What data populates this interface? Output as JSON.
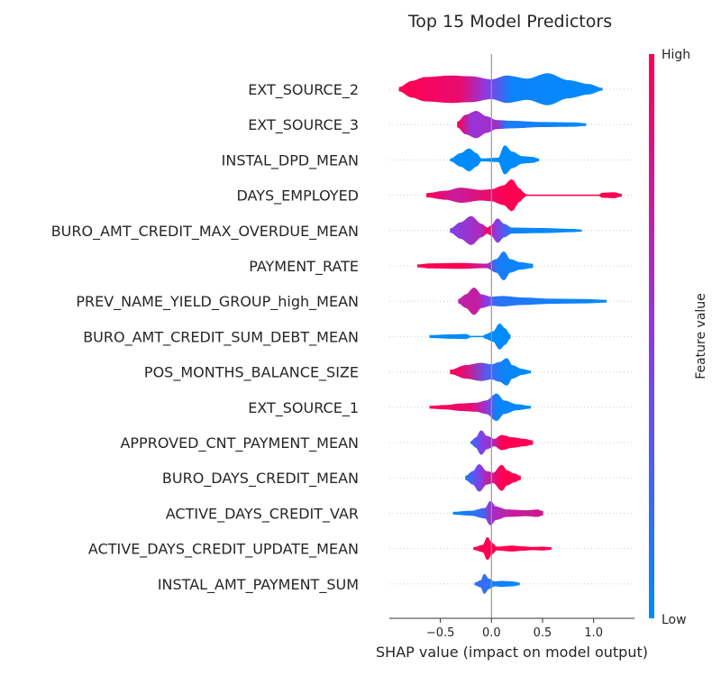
{
  "chart_data": {
    "type": "violin",
    "title": "Top 15 Model Predictors",
    "xlabel": "SHAP value (impact on model output)",
    "xlim": [
      -1.0,
      1.4
    ],
    "xticks": [
      -0.5,
      0.0,
      0.5,
      1.0
    ],
    "xtick_labels": [
      "−0.5",
      "0.0",
      "0.5",
      "1.0"
    ],
    "colorbar": {
      "label": "Feature value",
      "high_label": "High",
      "low_label": "Low",
      "low_color": "#008bfb",
      "mid_color": "#8c3ae6",
      "high_color": "#ff0052"
    },
    "zero_line": true,
    "grid": false,
    "features": [
      {
        "name": "EXT_SOURCE_2",
        "profile": [
          [
            -0.9,
            0.1
          ],
          [
            -0.78,
            0.5
          ],
          [
            -0.65,
            0.75
          ],
          [
            -0.4,
            0.85
          ],
          [
            -0.2,
            0.8
          ],
          [
            0.0,
            0.6
          ],
          [
            0.15,
            0.85
          ],
          [
            0.35,
            0.65
          ],
          [
            0.55,
            1.0
          ],
          [
            0.75,
            0.55
          ],
          [
            0.95,
            0.3
          ],
          [
            1.08,
            0.05
          ]
        ],
        "colors": [
          [
            -0.9,
            1.0
          ],
          [
            -0.3,
            0.9
          ],
          [
            -0.05,
            0.5
          ],
          [
            0.2,
            0.05
          ],
          [
            1.08,
            0.0
          ]
        ]
      },
      {
        "name": "EXT_SOURCE_3",
        "profile": [
          [
            -0.33,
            0.15
          ],
          [
            -0.25,
            0.6
          ],
          [
            -0.15,
            0.85
          ],
          [
            -0.05,
            0.5
          ],
          [
            0.05,
            0.25
          ],
          [
            0.2,
            0.2
          ],
          [
            0.5,
            0.12
          ],
          [
            0.8,
            0.1
          ],
          [
            0.92,
            0.05
          ]
        ],
        "colors": [
          [
            -0.33,
            1.0
          ],
          [
            -0.2,
            0.55
          ],
          [
            0.05,
            0.6
          ],
          [
            0.15,
            0.1
          ],
          [
            0.92,
            0.0
          ]
        ]
      },
      {
        "name": "INSTAL_DPD_MEAN",
        "profile": [
          [
            -0.4,
            0.05
          ],
          [
            -0.3,
            0.4
          ],
          [
            -0.22,
            0.7
          ],
          [
            -0.15,
            0.4
          ],
          [
            -0.1,
            0.05
          ],
          [
            0.07,
            0.1
          ],
          [
            0.13,
            0.9
          ],
          [
            0.2,
            0.5
          ],
          [
            0.3,
            0.2
          ],
          [
            0.4,
            0.15
          ],
          [
            0.46,
            0.05
          ]
        ],
        "colors": [
          [
            -0.4,
            0.0
          ],
          [
            0.46,
            0.0
          ]
        ]
      },
      {
        "name": "DAYS_EMPLOYED",
        "profile": [
          [
            -0.63,
            0.1
          ],
          [
            -0.45,
            0.25
          ],
          [
            -0.3,
            0.45
          ],
          [
            -0.1,
            0.3
          ],
          [
            0.0,
            0.35
          ],
          [
            0.12,
            0.6
          ],
          [
            0.2,
            1.0
          ],
          [
            0.27,
            0.4
          ],
          [
            0.32,
            0.1
          ],
          [
            0.33,
            0.0
          ],
          [
            1.06,
            0.0
          ],
          [
            1.08,
            0.12
          ],
          [
            1.2,
            0.15
          ],
          [
            1.27,
            0.05
          ]
        ],
        "colors": [
          [
            -0.63,
            1.0
          ],
          [
            -0.35,
            0.75
          ],
          [
            -0.05,
            0.9
          ],
          [
            0.15,
            1.0
          ],
          [
            1.27,
            1.0
          ]
        ]
      },
      {
        "name": "BURO_AMT_CREDIT_MAX_OVERDUE_MEAN",
        "profile": [
          [
            -0.4,
            0.1
          ],
          [
            -0.3,
            0.5
          ],
          [
            -0.2,
            0.9
          ],
          [
            -0.1,
            0.4
          ],
          [
            -0.04,
            0.15
          ],
          [
            0.0,
            0.3
          ],
          [
            0.06,
            0.75
          ],
          [
            0.12,
            0.4
          ],
          [
            0.2,
            0.15
          ],
          [
            0.5,
            0.12
          ],
          [
            0.8,
            0.06
          ],
          [
            0.88,
            0.02
          ]
        ],
        "colors": [
          [
            -0.4,
            0.45
          ],
          [
            -0.1,
            0.65
          ],
          [
            -0.03,
            1.0
          ],
          [
            0.03,
            0.55
          ],
          [
            0.12,
            0.3
          ],
          [
            0.2,
            0.05
          ],
          [
            0.88,
            0.0
          ]
        ]
      },
      {
        "name": "PAYMENT_RATE",
        "profile": [
          [
            -0.72,
            0.05
          ],
          [
            -0.6,
            0.12
          ],
          [
            -0.3,
            0.15
          ],
          [
            -0.05,
            0.1
          ],
          [
            0.05,
            0.4
          ],
          [
            0.12,
            0.9
          ],
          [
            0.18,
            0.4
          ],
          [
            0.28,
            0.2
          ],
          [
            0.4,
            0.1
          ]
        ],
        "colors": [
          [
            -0.72,
            1.0
          ],
          [
            -0.3,
            1.0
          ],
          [
            -0.05,
            0.7
          ],
          [
            0.05,
            0.1
          ],
          [
            0.4,
            0.0
          ]
        ]
      },
      {
        "name": "PREV_NAME_YIELD_GROUP_high_MEAN",
        "profile": [
          [
            -0.32,
            0.1
          ],
          [
            -0.25,
            0.4
          ],
          [
            -0.17,
            0.85
          ],
          [
            -0.1,
            0.4
          ],
          [
            0.0,
            0.25
          ],
          [
            0.1,
            0.3
          ],
          [
            0.3,
            0.2
          ],
          [
            0.6,
            0.12
          ],
          [
            0.9,
            0.1
          ],
          [
            1.12,
            0.05
          ]
        ],
        "colors": [
          [
            -0.32,
            0.7
          ],
          [
            -0.15,
            0.75
          ],
          [
            -0.05,
            0.5
          ],
          [
            0.05,
            0.15
          ],
          [
            1.12,
            0.0
          ]
        ]
      },
      {
        "name": "BURO_AMT_CREDIT_SUM_DEBT_MEAN",
        "profile": [
          [
            -0.6,
            0.05
          ],
          [
            -0.4,
            0.1
          ],
          [
            -0.25,
            0.12
          ],
          [
            -0.2,
            0.0
          ],
          [
            -0.08,
            0.0
          ],
          [
            -0.06,
            0.1
          ],
          [
            0.02,
            0.3
          ],
          [
            0.08,
            0.8
          ],
          [
            0.13,
            0.5
          ],
          [
            0.18,
            0.1
          ]
        ],
        "colors": [
          [
            -0.6,
            0.0
          ],
          [
            0.18,
            0.0
          ]
        ]
      },
      {
        "name": "POS_MONTHS_BALANCE_SIZE",
        "profile": [
          [
            -0.4,
            0.1
          ],
          [
            -0.25,
            0.4
          ],
          [
            -0.1,
            0.55
          ],
          [
            0.0,
            0.45
          ],
          [
            0.08,
            0.6
          ],
          [
            0.15,
            0.85
          ],
          [
            0.2,
            0.4
          ],
          [
            0.3,
            0.15
          ],
          [
            0.38,
            0.05
          ]
        ],
        "colors": [
          [
            -0.4,
            1.0
          ],
          [
            -0.25,
            0.85
          ],
          [
            -0.05,
            0.3
          ],
          [
            0.1,
            0.05
          ],
          [
            0.38,
            0.0
          ]
        ]
      },
      {
        "name": "EXT_SOURCE_1",
        "profile": [
          [
            -0.6,
            0.05
          ],
          [
            -0.45,
            0.1
          ],
          [
            -0.3,
            0.2
          ],
          [
            -0.15,
            0.25
          ],
          [
            -0.05,
            0.4
          ],
          [
            0.05,
            0.85
          ],
          [
            0.12,
            0.4
          ],
          [
            0.25,
            0.15
          ],
          [
            0.38,
            0.05
          ]
        ],
        "colors": [
          [
            -0.6,
            1.0
          ],
          [
            -0.2,
            0.9
          ],
          [
            -0.05,
            0.55
          ],
          [
            0.05,
            0.05
          ],
          [
            0.38,
            0.0
          ]
        ]
      },
      {
        "name": "APPROVED_CNT_PAYMENT_MEAN",
        "profile": [
          [
            -0.2,
            0.05
          ],
          [
            -0.15,
            0.3
          ],
          [
            -0.1,
            0.75
          ],
          [
            -0.05,
            0.4
          ],
          [
            0.03,
            0.2
          ],
          [
            0.1,
            0.45
          ],
          [
            0.2,
            0.3
          ],
          [
            0.32,
            0.2
          ],
          [
            0.4,
            0.1
          ]
        ],
        "colors": [
          [
            -0.2,
            0.2
          ],
          [
            -0.1,
            0.45
          ],
          [
            0.0,
            0.6
          ],
          [
            0.1,
            1.0
          ],
          [
            0.4,
            1.0
          ]
        ]
      },
      {
        "name": "BURO_DAYS_CREDIT_MEAN",
        "profile": [
          [
            -0.25,
            0.1
          ],
          [
            -0.18,
            0.4
          ],
          [
            -0.12,
            0.85
          ],
          [
            -0.05,
            0.4
          ],
          [
            0.02,
            0.3
          ],
          [
            0.1,
            0.8
          ],
          [
            0.15,
            0.45
          ],
          [
            0.22,
            0.25
          ],
          [
            0.28,
            0.1
          ]
        ],
        "colors": [
          [
            -0.25,
            0.1
          ],
          [
            -0.12,
            0.45
          ],
          [
            -0.02,
            0.75
          ],
          [
            0.1,
            1.0
          ],
          [
            0.28,
            1.0
          ]
        ]
      },
      {
        "name": "ACTIVE_DAYS_CREDIT_VAR",
        "profile": [
          [
            -0.37,
            0.05
          ],
          [
            -0.2,
            0.12
          ],
          [
            -0.06,
            0.3
          ],
          [
            -0.01,
            0.75
          ],
          [
            0.04,
            0.4
          ],
          [
            0.15,
            0.2
          ],
          [
            0.35,
            0.15
          ],
          [
            0.45,
            0.2
          ],
          [
            0.5,
            0.1
          ]
        ],
        "colors": [
          [
            -0.37,
            0.0
          ],
          [
            -0.1,
            0.2
          ],
          [
            0.0,
            0.6
          ],
          [
            0.2,
            0.75
          ],
          [
            0.5,
            0.8
          ]
        ]
      },
      {
        "name": "ACTIVE_DAYS_CREDIT_UPDATE_MEAN",
        "profile": [
          [
            -0.17,
            0.05
          ],
          [
            -0.08,
            0.2
          ],
          [
            -0.04,
            0.7
          ],
          [
            0.0,
            0.35
          ],
          [
            0.05,
            0.08
          ],
          [
            0.2,
            0.15
          ],
          [
            0.3,
            0.1
          ],
          [
            0.4,
            0.06
          ],
          [
            0.5,
            0.08
          ],
          [
            0.58,
            0.04
          ]
        ],
        "colors": [
          [
            -0.17,
            1.0
          ],
          [
            0.58,
            1.0
          ]
        ]
      },
      {
        "name": "INSTAL_AMT_PAYMENT_SUM",
        "profile": [
          [
            -0.16,
            0.05
          ],
          [
            -0.1,
            0.2
          ],
          [
            -0.07,
            0.6
          ],
          [
            -0.03,
            0.3
          ],
          [
            0.03,
            0.12
          ],
          [
            0.1,
            0.15
          ],
          [
            0.2,
            0.12
          ],
          [
            0.27,
            0.05
          ]
        ],
        "colors": [
          [
            -0.16,
            0.15
          ],
          [
            -0.07,
            0.2
          ],
          [
            0.0,
            0.1
          ],
          [
            0.27,
            0.0
          ]
        ]
      }
    ]
  }
}
